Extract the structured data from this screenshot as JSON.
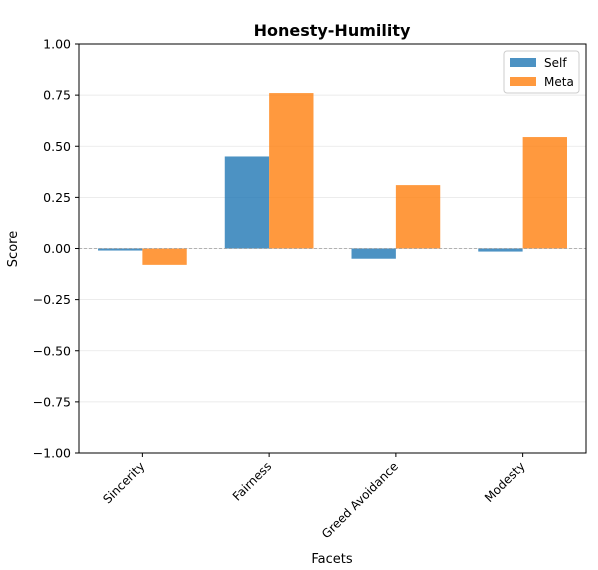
{
  "chart_data": {
    "type": "bar",
    "title": "Honesty-Humility",
    "xlabel": "Facets",
    "ylabel": "Score",
    "categories": [
      "Sincerity",
      "Fairness",
      "Greed Avoidance",
      "Modesty"
    ],
    "series": [
      {
        "name": "Self",
        "values": [
          -0.01,
          0.45,
          -0.05,
          -0.015
        ],
        "color": "#1f77b4"
      },
      {
        "name": "Meta",
        "values": [
          -0.08,
          0.76,
          0.31,
          0.545
        ],
        "color": "#ff7f0e"
      }
    ],
    "ylim": [
      -1.0,
      1.0
    ],
    "yticks": [
      1.0,
      0.75,
      0.5,
      0.25,
      0.0,
      -0.25,
      -0.5,
      -0.75,
      -1.0
    ],
    "ytick_labels": [
      "1.00",
      "0.75",
      "0.50",
      "0.25",
      "0.00",
      "−0.25",
      "−0.50",
      "−0.75",
      "−1.00"
    ],
    "grid": "horizontal",
    "zero_line": true,
    "legend_position": "top-right",
    "bar_opacity": 0.8
  }
}
